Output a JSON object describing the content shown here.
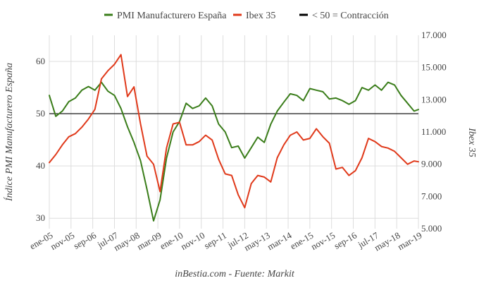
{
  "chart_data": {
    "type": "line",
    "title": "",
    "source": "inBestia.com - Fuente: Markit",
    "legend": {
      "placement": "top-center",
      "items": [
        {
          "label": "PMI Manufacturero España",
          "color": "#3a7d1a"
        },
        {
          "label": "Ibex 35",
          "color": "#e0391a"
        },
        {
          "label": "< 50 = Contracción",
          "color": "#000000"
        }
      ]
    },
    "xaxis": {
      "ticks": [
        "ene-05",
        "nov-05",
        "sep-06",
        "jul-07",
        "may-08",
        "mar-09",
        "ene-10",
        "nov-10",
        "sep-11",
        "jul-12",
        "may-13",
        "mar-14",
        "ene-15",
        "nov-15",
        "sep-16",
        "jul-17",
        "may-18",
        "mar-19"
      ],
      "range": [
        "2005-01",
        "2019-03"
      ]
    },
    "yaxis_left": {
      "label": "Índice PMI Manufacturero España",
      "ticks": [
        "30",
        "40",
        "50",
        "60"
      ],
      "range": [
        28,
        65
      ]
    },
    "yaxis_right": {
      "label": "Ibex 35",
      "ticks": [
        "5.000",
        "7.000",
        "9.000",
        "11.000",
        "13.000",
        "15.000",
        "17.000"
      ],
      "range": [
        5000,
        17000
      ]
    },
    "grid": true,
    "reference_line": {
      "value": 50,
      "axis": "left",
      "color": "#000000"
    },
    "series": [
      {
        "name": "PMI Manufacturero España",
        "axis": "left",
        "color": "#3a7d1a",
        "x": [
          "2005-01",
          "2005-04",
          "2005-07",
          "2005-10",
          "2006-01",
          "2006-04",
          "2006-07",
          "2006-10",
          "2007-01",
          "2007-04",
          "2007-07",
          "2007-10",
          "2008-01",
          "2008-04",
          "2008-07",
          "2008-10",
          "2009-01",
          "2009-04",
          "2009-07",
          "2009-10",
          "2010-01",
          "2010-04",
          "2010-07",
          "2010-10",
          "2011-01",
          "2011-04",
          "2011-07",
          "2011-10",
          "2012-01",
          "2012-04",
          "2012-07",
          "2012-10",
          "2013-01",
          "2013-04",
          "2013-07",
          "2013-10",
          "2014-01",
          "2014-04",
          "2014-07",
          "2014-10",
          "2015-01",
          "2015-04",
          "2015-07",
          "2015-10",
          "2016-01",
          "2016-04",
          "2016-07",
          "2016-10",
          "2017-01",
          "2017-04",
          "2017-07",
          "2017-10",
          "2018-01",
          "2018-04",
          "2018-07",
          "2018-10",
          "2019-01",
          "2019-03"
        ],
        "values": [
          53.5,
          49.5,
          50.5,
          52.3,
          53.0,
          54.5,
          55.2,
          54.5,
          56.0,
          54.3,
          53.5,
          51.0,
          47.5,
          44.5,
          41.0,
          35.5,
          29.5,
          33.5,
          41.5,
          46.5,
          48.5,
          52.0,
          51.0,
          51.5,
          53.0,
          51.5,
          48.0,
          46.5,
          43.5,
          43.8,
          41.5,
          43.5,
          45.5,
          44.5,
          48.0,
          50.5,
          52.2,
          53.8,
          53.5,
          52.5,
          54.8,
          54.5,
          54.2,
          52.8,
          53.0,
          52.5,
          51.8,
          52.5,
          55.0,
          54.5,
          55.5,
          54.5,
          56.0,
          55.5,
          53.5,
          52.0,
          50.5,
          50.8
        ]
      },
      {
        "name": "Ibex 35",
        "axis": "right",
        "color": "#e0391a",
        "x": [
          "2005-01",
          "2005-04",
          "2005-07",
          "2005-10",
          "2006-01",
          "2006-04",
          "2006-07",
          "2006-10",
          "2007-01",
          "2007-04",
          "2007-07",
          "2007-10",
          "2008-01",
          "2008-04",
          "2008-07",
          "2008-10",
          "2009-01",
          "2009-04",
          "2009-07",
          "2009-10",
          "2010-01",
          "2010-04",
          "2010-07",
          "2010-10",
          "2011-01",
          "2011-04",
          "2011-07",
          "2011-10",
          "2012-01",
          "2012-04",
          "2012-07",
          "2012-10",
          "2013-01",
          "2013-04",
          "2013-07",
          "2013-10",
          "2014-01",
          "2014-04",
          "2014-07",
          "2014-10",
          "2015-01",
          "2015-04",
          "2015-07",
          "2015-10",
          "2016-01",
          "2016-04",
          "2016-07",
          "2016-10",
          "2017-01",
          "2017-04",
          "2017-07",
          "2017-10",
          "2018-01",
          "2018-04",
          "2018-07",
          "2018-10",
          "2019-01",
          "2019-03"
        ],
        "values": [
          9100,
          9600,
          10200,
          10700,
          10900,
          11300,
          11800,
          12400,
          14300,
          14800,
          15200,
          15800,
          13200,
          13800,
          11500,
          9500,
          9000,
          7300,
          10000,
          11500,
          11600,
          10200,
          10200,
          10400,
          10800,
          10500,
          9300,
          8400,
          8300,
          7100,
          6300,
          7800,
          8300,
          8200,
          7900,
          9400,
          10200,
          10800,
          11000,
          10500,
          10600,
          11200,
          10700,
          10300,
          8700,
          8800,
          8300,
          8600,
          9400,
          10600,
          10400,
          10100,
          10000,
          9800,
          9400,
          9000,
          9200,
          9150
        ]
      },
      {
        "name": "< 50 = Contracción",
        "axis": "left",
        "color": "#000000",
        "x": [
          "2005-01",
          "2019-03"
        ],
        "values": [
          50,
          50
        ]
      }
    ]
  }
}
